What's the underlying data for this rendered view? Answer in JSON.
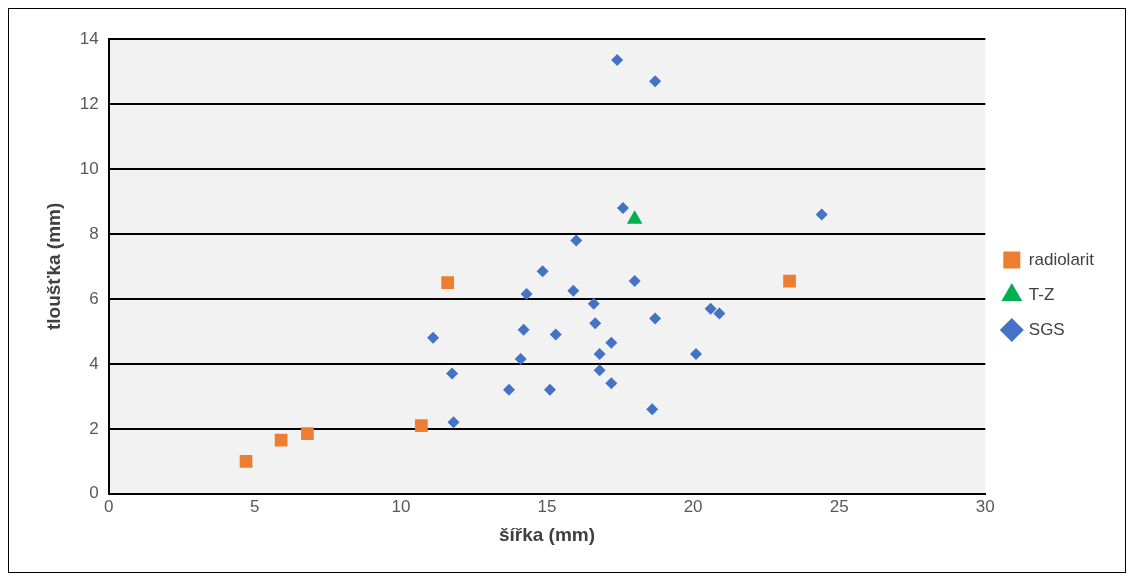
{
  "chart_data": {
    "type": "scatter",
    "xlabel": "šířka (mm)",
    "ylabel": "tloušťka (mm)",
    "xlim": [
      0,
      30
    ],
    "xticks": [
      0,
      5,
      10,
      15,
      20,
      25,
      30
    ],
    "ylim": [
      0,
      14
    ],
    "yticks": [
      0,
      2,
      4,
      6,
      8,
      10,
      12,
      14
    ],
    "grid": "y",
    "legend": "right",
    "series": [
      {
        "name": "radiolarit",
        "color": "#ed7d31",
        "marker": "square",
        "x": [
          4.7,
          5.9,
          6.8,
          10.7,
          11.6,
          23.3
        ],
        "values": [
          1.0,
          1.65,
          1.85,
          2.1,
          6.5,
          6.55
        ]
      },
      {
        "name": "T-Z",
        "color": "#00b050",
        "marker": "triangle",
        "x": [
          18.0
        ],
        "values": [
          8.45
        ]
      },
      {
        "name": "SGS",
        "color": "#4472c4",
        "marker": "diamond",
        "x": [
          17.4,
          18.7,
          17.6,
          24.4,
          16.0,
          14.85,
          14.3,
          15.9,
          16.6,
          18.0,
          20.6,
          20.9,
          18.7,
          11.1,
          14.2,
          15.3,
          16.65,
          17.2,
          14.1,
          16.8,
          20.1,
          11.75,
          16.8,
          17.2,
          13.7,
          15.1,
          18.6,
          11.8
        ],
        "values": [
          13.35,
          12.7,
          8.8,
          8.6,
          7.8,
          6.85,
          6.15,
          6.25,
          5.85,
          6.55,
          5.7,
          5.55,
          5.4,
          4.8,
          5.05,
          4.9,
          5.25,
          4.65,
          4.15,
          4.3,
          4.3,
          3.7,
          3.8,
          3.4,
          3.2,
          3.2,
          2.6,
          2.2
        ]
      }
    ]
  }
}
